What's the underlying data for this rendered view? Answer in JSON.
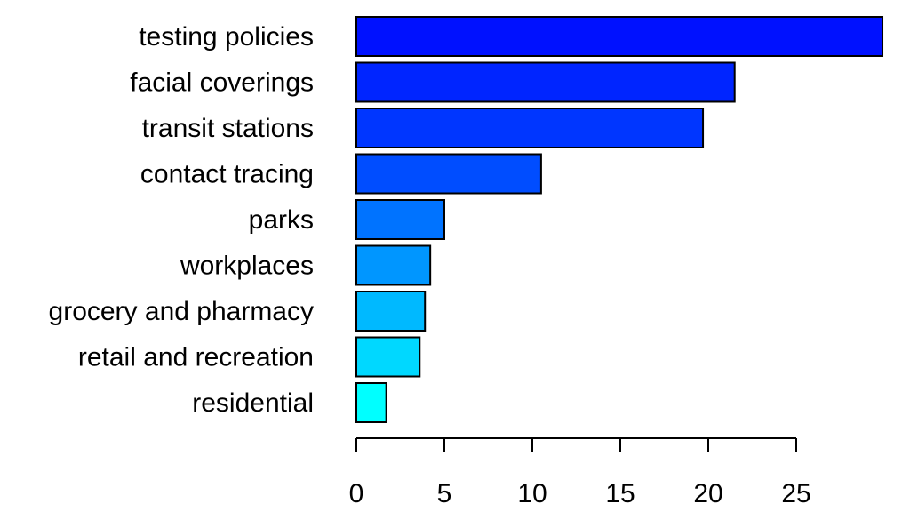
{
  "chart_data": {
    "type": "bar",
    "orientation": "horizontal",
    "categories": [
      "testing policies",
      "facial coverings",
      "transit stations",
      "contact tracing",
      "parks",
      "workplaces",
      "grocery and pharmacy",
      "retail and recreation",
      "residential"
    ],
    "values": [
      29.9,
      21.5,
      19.7,
      10.5,
      5.0,
      4.2,
      3.9,
      3.6,
      1.7
    ],
    "colors": [
      "#0011ff",
      "#0025ff",
      "#0036ff",
      "#004dff",
      "#0073ff",
      "#0096ff",
      "#00b9ff",
      "#00d8ff",
      "#00ffff"
    ],
    "xticks": [
      0,
      5,
      10,
      15,
      20,
      25
    ],
    "xlim": [
      0,
      30
    ],
    "title": "",
    "xlabel": "",
    "ylabel": "",
    "grid": false,
    "legend": "none"
  }
}
